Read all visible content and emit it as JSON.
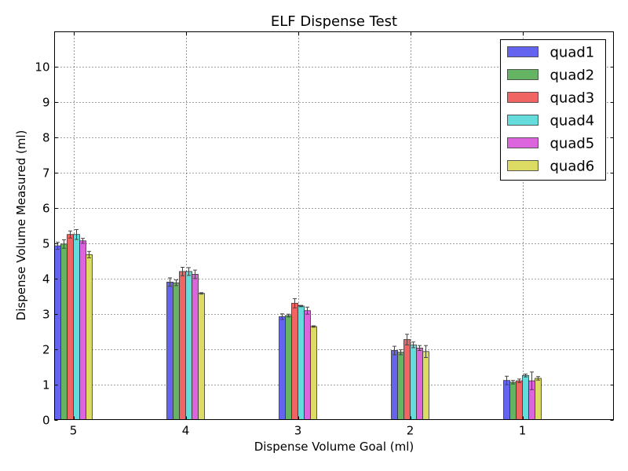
{
  "chart_data": {
    "type": "bar",
    "title": "ELF Dispense Test",
    "xlabel": "Dispense Volume Goal (ml)",
    "ylabel": "Dispense Volume Measured (ml)",
    "ylim": [
      0,
      11
    ],
    "yticks": [
      0,
      1,
      2,
      3,
      4,
      5,
      6,
      7,
      8,
      9,
      10
    ],
    "categories": [
      "5",
      "4",
      "3",
      "2",
      "1"
    ],
    "grid": true,
    "legend_position": "top-right",
    "series": [
      {
        "name": "quad1",
        "color": "#6464f0",
        "values": [
          4.93,
          3.9,
          2.92,
          1.96,
          1.11
        ],
        "errors": [
          0.1,
          0.12,
          0.08,
          0.12,
          0.12
        ]
      },
      {
        "name": "quad2",
        "color": "#64b464",
        "values": [
          4.98,
          3.88,
          2.95,
          1.91,
          1.06
        ],
        "errors": [
          0.12,
          0.08,
          0.04,
          0.07,
          0.05
        ]
      },
      {
        "name": "quad3",
        "color": "#f06464",
        "values": [
          5.25,
          4.2,
          3.3,
          2.27,
          1.1
        ],
        "errors": [
          0.1,
          0.12,
          0.13,
          0.15,
          0.05
        ]
      },
      {
        "name": "quad4",
        "color": "#64dcdc",
        "values": [
          5.25,
          4.2,
          3.22,
          2.12,
          1.25
        ],
        "errors": [
          0.14,
          0.11,
          0.02,
          0.08,
          0.04
        ]
      },
      {
        "name": "quad5",
        "color": "#dc64dc",
        "values": [
          5.07,
          4.12,
          3.09,
          2.03,
          1.1
        ],
        "errors": [
          0.07,
          0.12,
          0.1,
          0.07,
          0.25
        ]
      },
      {
        "name": "quad6",
        "color": "#dcdc64",
        "values": [
          4.68,
          3.58,
          2.64,
          1.93,
          1.17
        ],
        "errors": [
          0.09,
          0.02,
          0.02,
          0.17,
          0.05
        ]
      }
    ]
  }
}
